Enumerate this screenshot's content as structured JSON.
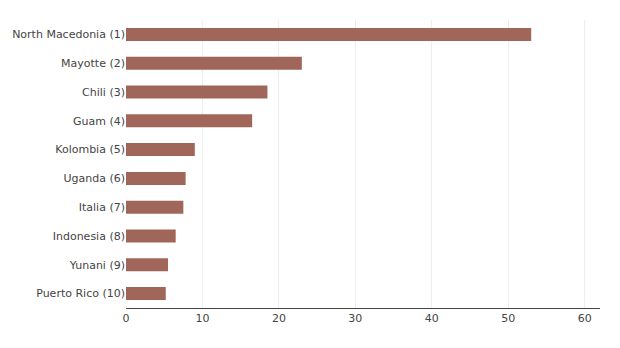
{
  "chart_data": {
    "type": "bar",
    "orientation": "horizontal",
    "categories": [
      "Puerto Rico (10)",
      "Yunani (9)",
      "Indonesia (8)",
      "Italia (7)",
      "Uganda (6)",
      "Kolombia (5)",
      "Guam (4)",
      "Chili (3)",
      "Mayotte (2)",
      "North Macedonia (1)"
    ],
    "values": [
      5.2,
      5.5,
      6.5,
      7.5,
      7.8,
      9.0,
      16.5,
      18.5,
      23.0,
      53.0
    ],
    "color": "#a0665a",
    "xlim": [
      0,
      62
    ],
    "xticks": [
      0,
      10,
      20,
      30,
      40,
      50,
      60
    ],
    "grid": true
  }
}
